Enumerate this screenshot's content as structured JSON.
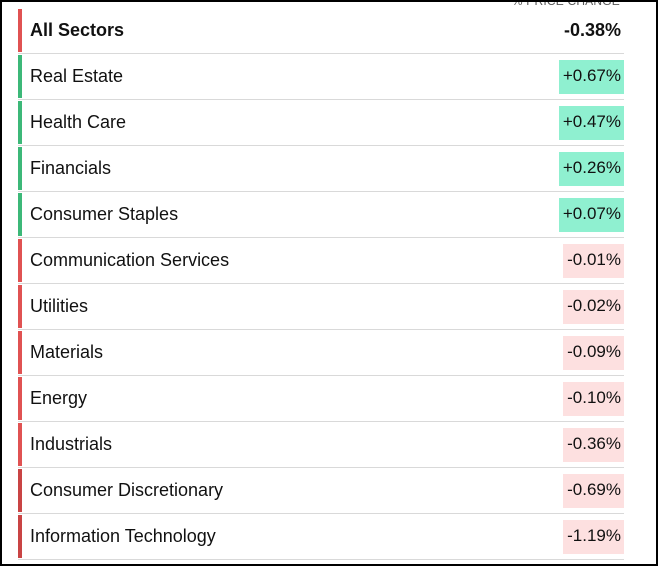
{
  "header": {
    "column_label": "% PRICE CHANGE"
  },
  "colors": {
    "positive_bar": "#3cb878",
    "negative_bar": "#e05252",
    "negative_bar_dark": "#c94444",
    "positive_bg": "#8ff0d0",
    "negative_bg": "#fde0e0"
  },
  "rows": [
    {
      "name": "All Sectors",
      "change": "-0.38%",
      "direction": "negative",
      "total": true
    },
    {
      "name": "Real Estate",
      "change": "+0.67%",
      "direction": "positive"
    },
    {
      "name": "Health Care",
      "change": "+0.47%",
      "direction": "positive"
    },
    {
      "name": "Financials",
      "change": "+0.26%",
      "direction": "positive"
    },
    {
      "name": "Consumer Staples",
      "change": "+0.07%",
      "direction": "positive"
    },
    {
      "name": "Communication Services",
      "change": "-0.01%",
      "direction": "negative"
    },
    {
      "name": "Utilities",
      "change": "-0.02%",
      "direction": "negative"
    },
    {
      "name": "Materials",
      "change": "-0.09%",
      "direction": "negative"
    },
    {
      "name": "Energy",
      "change": "-0.10%",
      "direction": "negative"
    },
    {
      "name": "Industrials",
      "change": "-0.36%",
      "direction": "negative"
    },
    {
      "name": "Consumer Discretionary",
      "change": "-0.69%",
      "direction": "negative"
    },
    {
      "name": "Information Technology",
      "change": "-1.19%",
      "direction": "negative"
    }
  ]
}
